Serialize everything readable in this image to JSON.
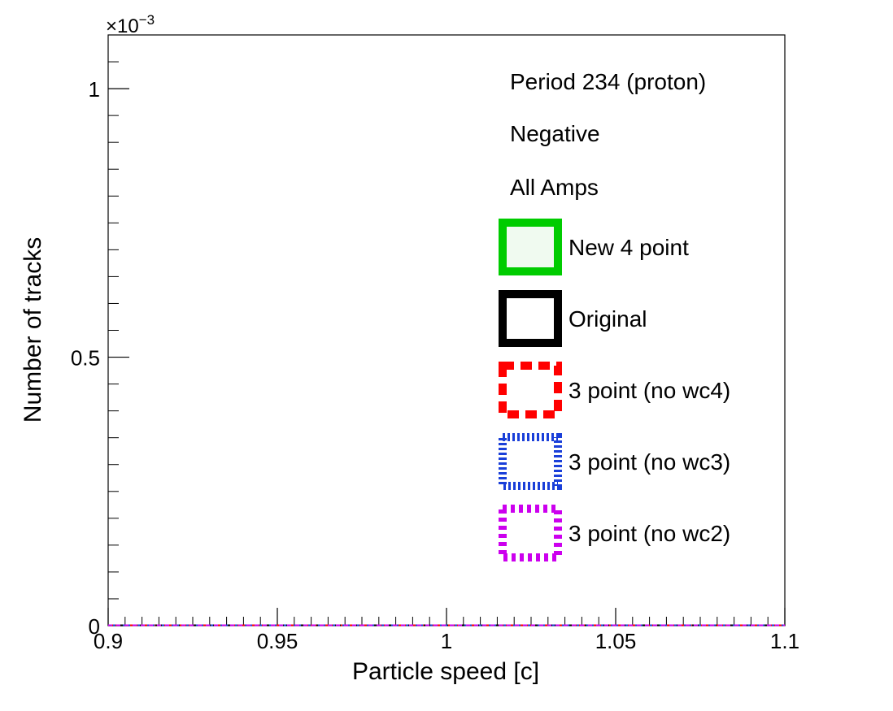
{
  "chart_data": {
    "type": "line",
    "xlabel": "Particle speed [c]",
    "ylabel": "Number of tracks",
    "y_exponent_label": "×10",
    "y_exponent_power": "−3",
    "xlim": [
      0.9,
      1.1
    ],
    "ylim": [
      0,
      0.0011
    ],
    "x_ticks": [
      {
        "value": 0.9,
        "label": "0.9"
      },
      {
        "value": 0.95,
        "label": "0.95"
      },
      {
        "value": 1.0,
        "label": "1"
      },
      {
        "value": 1.05,
        "label": "1.05"
      },
      {
        "value": 1.1,
        "label": "1.1"
      }
    ],
    "y_ticks": [
      {
        "value": 0,
        "label": "0"
      },
      {
        "value": 0.0005,
        "label": "0.5"
      },
      {
        "value": 0.001,
        "label": "1"
      }
    ],
    "legend_position": "top-right",
    "legend_text": [
      "Period 234 (proton)",
      "Negative",
      "All Amps"
    ],
    "series": [
      {
        "name": "New 4 point",
        "color": "#00cc00",
        "dash": "solid",
        "fill": "#f0faf0",
        "x": [
          0.9,
          1.1
        ],
        "y": [
          0,
          0
        ]
      },
      {
        "name": "Original",
        "color": "#000000",
        "dash": "solid",
        "fill": "none",
        "x": [
          0.9,
          1.1
        ],
        "y": [
          0,
          0
        ]
      },
      {
        "name": "3 point (no wc4)",
        "color": "#ff0000",
        "dash": "dashed",
        "fill": "none",
        "x": [
          0.9,
          1.1
        ],
        "y": [
          0,
          0
        ]
      },
      {
        "name": "3 point (no wc3)",
        "color": "#1a3fd9",
        "dash": "dotted-fine",
        "fill": "none",
        "x": [
          0.9,
          1.1
        ],
        "y": [
          0,
          0
        ]
      },
      {
        "name": "3 point (no wc2)",
        "color": "#cc00ee",
        "dash": "dotted",
        "fill": "none",
        "x": [
          0.9,
          1.1
        ],
        "y": [
          0,
          0
        ]
      }
    ]
  }
}
